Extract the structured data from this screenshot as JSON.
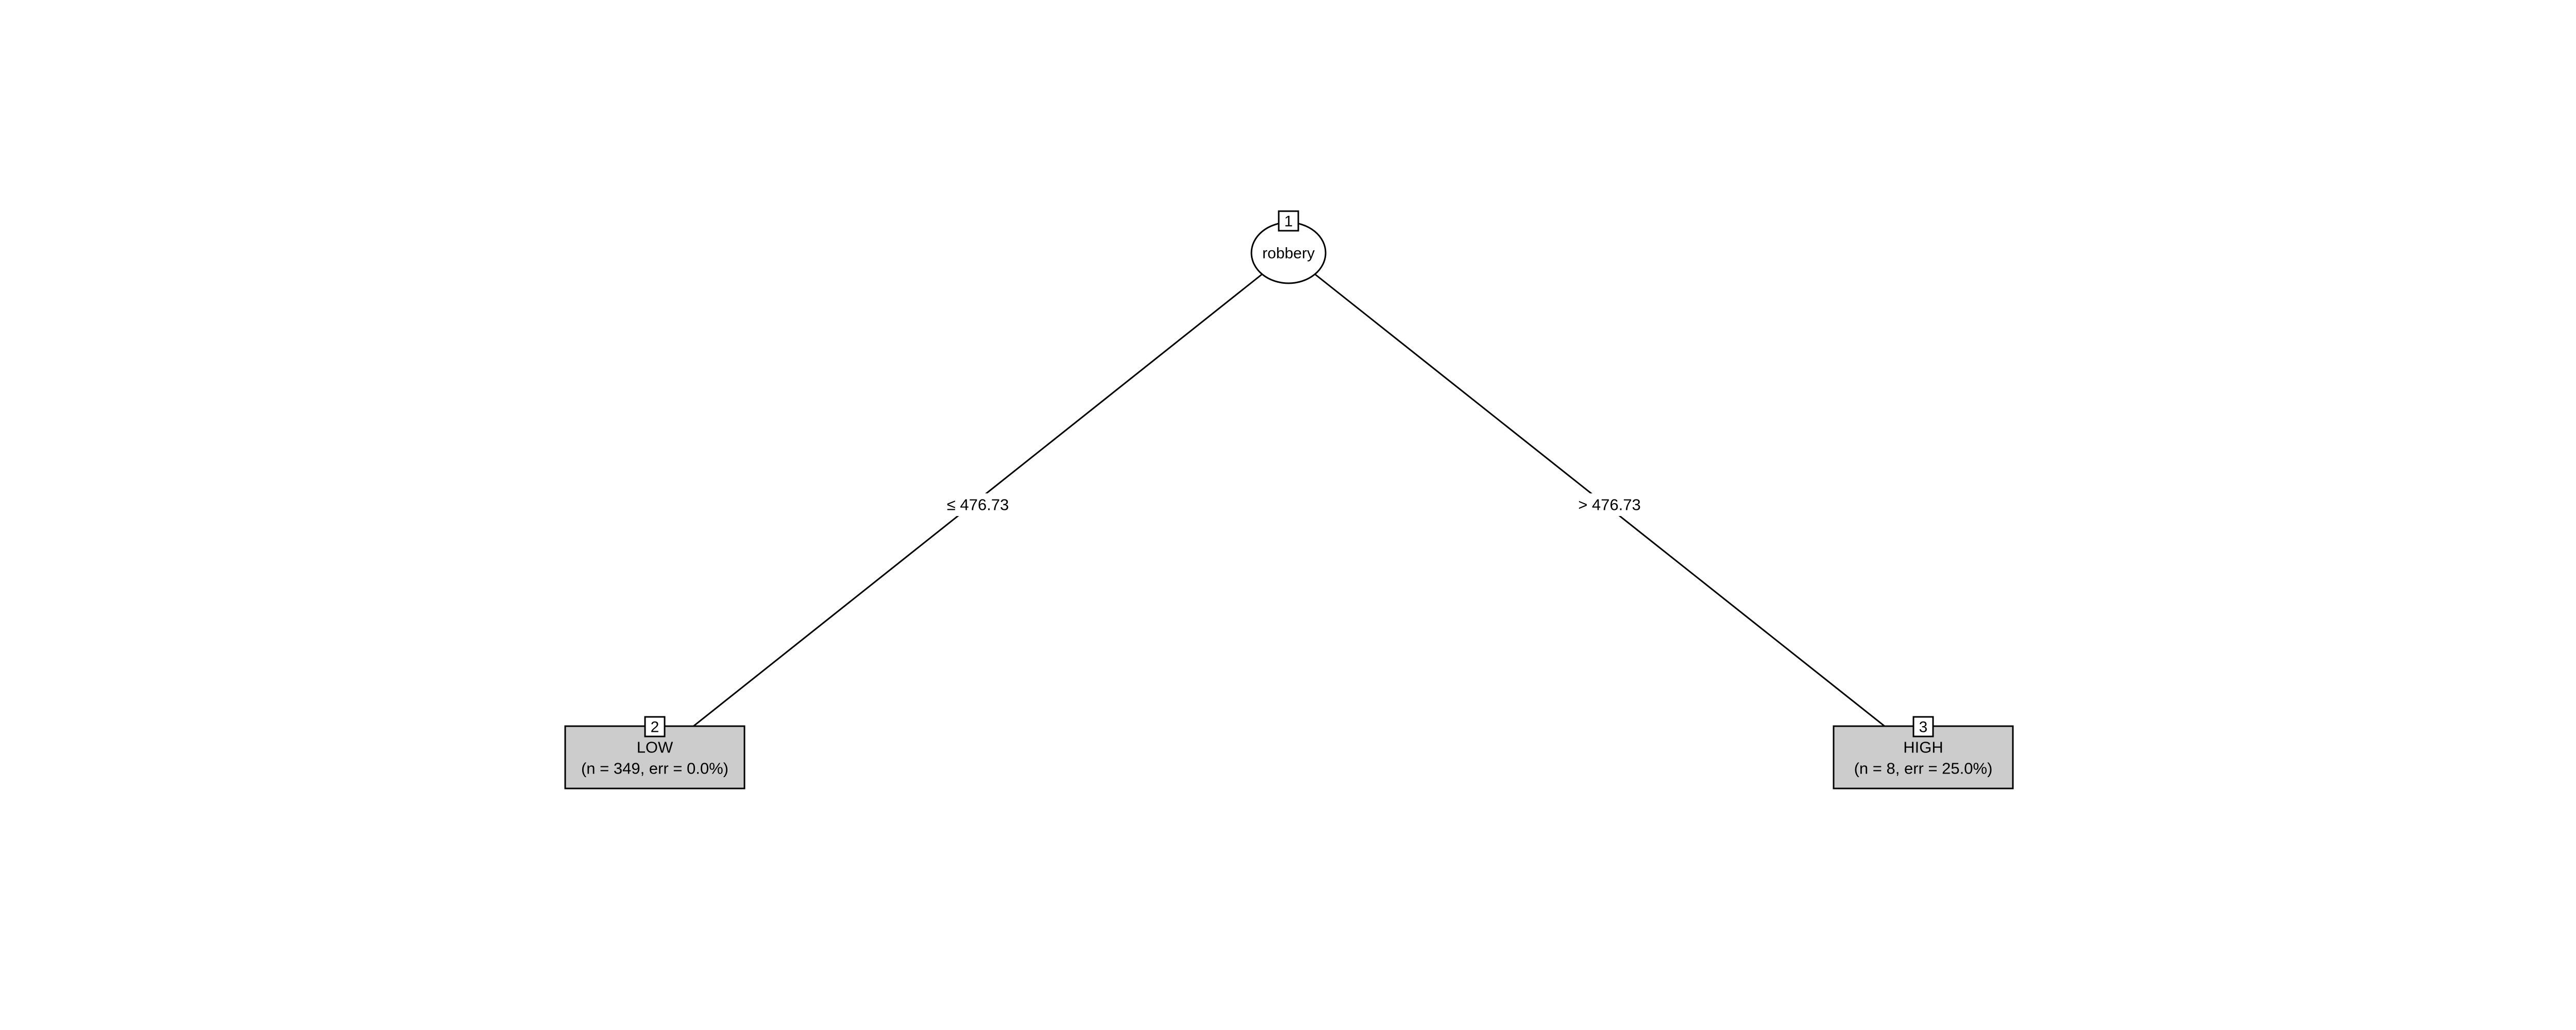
{
  "tree": {
    "root": {
      "id": "1",
      "variable": "robbery"
    },
    "edges": {
      "left_label": "≤ 476.73",
      "right_label": "> 476.73"
    },
    "leaves": [
      {
        "id": "2",
        "class_label": "LOW",
        "stats": "(n = 349, err = 0.0%)"
      },
      {
        "id": "3",
        "class_label": "HIGH",
        "stats": "(n = 8, err = 25.0%)"
      }
    ],
    "colors": {
      "leaf_fill": "#cccccc",
      "line": "#000000",
      "background": "#ffffff"
    }
  }
}
